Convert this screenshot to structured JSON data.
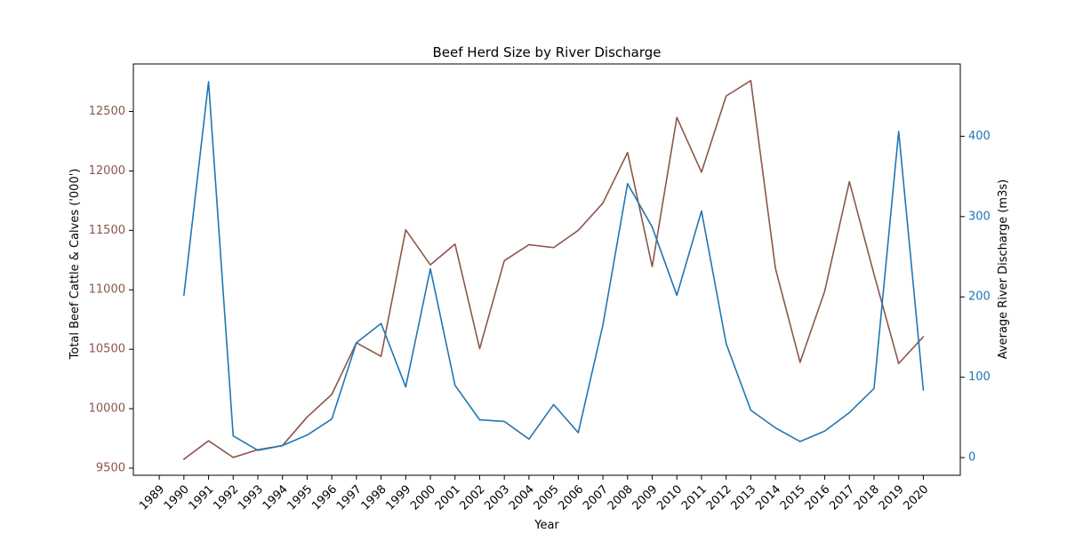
{
  "chart_data": {
    "type": "line",
    "title": "Beef Herd Size by River Discharge",
    "xlabel": "Year",
    "ylabel": "Total Beef Cattle & Calves ('000')",
    "y2label": "Average River Discharge (m3s)",
    "x_ticks": [
      "1989",
      "1990",
      "1991",
      "1992",
      "1993",
      "1994",
      "1995",
      "1996",
      "1997",
      "1998",
      "1999",
      "2000",
      "2001",
      "2002",
      "2003",
      "2004",
      "2005",
      "2006",
      "2007",
      "2008",
      "2009",
      "2010",
      "2011",
      "2012",
      "2013",
      "2014",
      "2015",
      "2016",
      "2017",
      "2018",
      "2019",
      "2020"
    ],
    "x": [
      1990,
      1991,
      1992,
      1993,
      1994,
      1995,
      1996,
      1997,
      1998,
      1999,
      2000,
      2001,
      2002,
      2003,
      2004,
      2005,
      2006,
      2007,
      2008,
      2009,
      2010,
      2011,
      2012,
      2013,
      2014,
      2015,
      2016,
      2017,
      2018,
      2019,
      2020
    ],
    "xlim": [
      1987.95,
      2021.5
    ],
    "ylim": [
      9440,
      12900
    ],
    "y2lim": [
      -22,
      490
    ],
    "yticks": [
      9500,
      10000,
      10500,
      11000,
      11500,
      12000,
      12500
    ],
    "y2ticks": [
      0,
      100,
      200,
      300,
      400
    ],
    "grid": false,
    "series": [
      {
        "axis": "left",
        "color": "#8c564b",
        "values": [
          9575,
          9730,
          9590,
          9655,
          9690,
          9930,
          10120,
          10555,
          10440,
          11505,
          11210,
          11385,
          10505,
          11245,
          11380,
          11355,
          11500,
          11730,
          12155,
          11195,
          12450,
          11990,
          12630,
          12760,
          11180,
          10390,
          10990,
          11910,
          11130,
          10380,
          10605
        ]
      },
      {
        "axis": "right",
        "color": "#1f77b4",
        "values": [
          202,
          468,
          27,
          9,
          15,
          28,
          48,
          143,
          167,
          88,
          235,
          90,
          47,
          45,
          23,
          66,
          31,
          165,
          341,
          287,
          202,
          307,
          142,
          59,
          37,
          20,
          33,
          56,
          86,
          406,
          84
        ]
      }
    ]
  }
}
